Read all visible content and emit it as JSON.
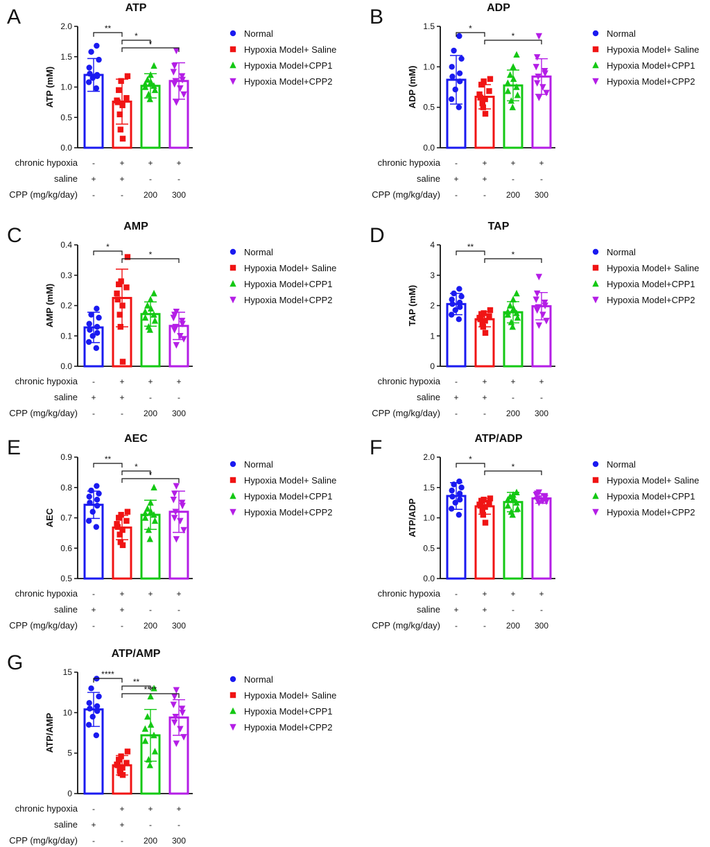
{
  "design": {
    "group_colors": [
      "#1a1af0",
      "#f01414",
      "#14c814",
      "#b41ee6"
    ],
    "group_markers": [
      "circle",
      "square",
      "triangle-up",
      "triangle-down"
    ]
  },
  "legend": [
    "Normal",
    "Hypoxia Model+ Saline",
    "Hypoxia Model+CPP1",
    "Hypoxia Model+CPP2"
  ],
  "conditions": {
    "labels": [
      "chronic hypoxia",
      "saline",
      "CPP (mg/kg/day)"
    ],
    "values": [
      [
        "-",
        "+",
        "+",
        "+"
      ],
      [
        "+",
        "+",
        "-",
        "-"
      ],
      [
        "-",
        "-",
        "200",
        "300"
      ]
    ]
  },
  "chart_data": [
    {
      "panel": "A",
      "type": "bar",
      "title": "ATP",
      "ylabel": "ATP (mM)",
      "ylim": [
        0,
        2.0
      ],
      "yticks": [
        "0.0",
        "0.5",
        "1.0",
        "1.5",
        "2.0"
      ],
      "categories": [
        "Normal",
        "Hypoxia Model+ Saline",
        "Hypoxia Model+CPP1",
        "Hypoxia Model+CPP2"
      ],
      "means": [
        1.2,
        0.76,
        1.02,
        1.1
      ],
      "sd": [
        0.27,
        0.37,
        0.2,
        0.3
      ],
      "points": [
        [
          0.98,
          1.08,
          1.15,
          1.18,
          1.22,
          1.2,
          1.32,
          1.45,
          1.58,
          1.68
        ],
        [
          0.15,
          0.3,
          0.55,
          0.7,
          0.75,
          0.78,
          0.82,
          0.95,
          1.1,
          1.18
        ],
        [
          0.8,
          0.88,
          0.95,
          1.0,
          1.02,
          1.05,
          1.08,
          1.12,
          1.2,
          1.35
        ],
        [
          0.75,
          0.88,
          0.98,
          1.05,
          1.1,
          1.12,
          1.18,
          1.25,
          1.35,
          1.6
        ]
      ],
      "comparisons": [
        {
          "from": 0,
          "to": 1,
          "level": 0,
          "label": "**"
        },
        {
          "from": 1,
          "to": 2,
          "level": 1,
          "label": "*"
        },
        {
          "from": 1,
          "to": 3,
          "level": 2,
          "label": "*"
        }
      ]
    },
    {
      "panel": "B",
      "type": "bar",
      "title": "ADP",
      "ylabel": "ADP (mM)",
      "ylim": [
        0,
        1.5
      ],
      "yticks": [
        "0.0",
        "0.5",
        "1.0",
        "1.5"
      ],
      "categories": [
        "Normal",
        "Hypoxia Model+ Saline",
        "Hypoxia Model+CPP1",
        "Hypoxia Model+CPP2"
      ],
      "means": [
        0.84,
        0.63,
        0.77,
        0.88
      ],
      "sd": [
        0.3,
        0.15,
        0.19,
        0.22
      ],
      "points": [
        [
          0.5,
          0.6,
          0.72,
          0.82,
          0.88,
          0.92,
          1.0,
          1.1,
          1.2,
          1.38
        ],
        [
          0.42,
          0.5,
          0.55,
          0.6,
          0.62,
          0.66,
          0.7,
          0.78,
          0.82,
          0.85
        ],
        [
          0.5,
          0.58,
          0.65,
          0.7,
          0.75,
          0.8,
          0.85,
          0.9,
          1.0,
          1.15
        ],
        [
          0.62,
          0.68,
          0.75,
          0.8,
          0.88,
          0.92,
          0.95,
          1.0,
          1.12,
          1.38
        ]
      ],
      "comparisons": [
        {
          "from": 0,
          "to": 1,
          "level": 0,
          "label": "*"
        },
        {
          "from": 1,
          "to": 3,
          "level": 1,
          "label": "*"
        }
      ]
    },
    {
      "panel": "C",
      "type": "bar",
      "title": "AMP",
      "ylabel": "AMP (mM)",
      "ylim": [
        0,
        0.4
      ],
      "yticks": [
        "0.0",
        "0.1",
        "0.2",
        "0.3",
        "0.4"
      ],
      "categories": [
        "Normal",
        "Hypoxia Model+ Saline",
        "Hypoxia Model+CPP1",
        "Hypoxia Model+CPP2"
      ],
      "means": [
        0.128,
        0.225,
        0.172,
        0.133
      ],
      "sd": [
        0.05,
        0.095,
        0.04,
        0.045
      ],
      "points": [
        [
          0.06,
          0.08,
          0.1,
          0.11,
          0.12,
          0.13,
          0.14,
          0.16,
          0.17,
          0.19
        ],
        [
          0.015,
          0.13,
          0.17,
          0.2,
          0.22,
          0.24,
          0.26,
          0.27,
          0.28,
          0.36
        ],
        [
          0.12,
          0.13,
          0.15,
          0.16,
          0.17,
          0.18,
          0.19,
          0.2,
          0.22,
          0.24
        ],
        [
          0.07,
          0.09,
          0.1,
          0.12,
          0.13,
          0.14,
          0.15,
          0.16,
          0.17,
          0.18
        ]
      ],
      "comparisons": [
        {
          "from": 0,
          "to": 1,
          "level": 0,
          "label": "*"
        },
        {
          "from": 1,
          "to": 3,
          "level": 1,
          "label": "*"
        }
      ]
    },
    {
      "panel": "D",
      "type": "bar",
      "title": "TAP",
      "ylabel": "TAP (mM)",
      "ylim": [
        0,
        4
      ],
      "yticks": [
        "0",
        "1",
        "2",
        "3",
        "4"
      ],
      "categories": [
        "Normal",
        "Hypoxia Model+ Saline",
        "Hypoxia Model+CPP1",
        "Hypoxia Model+CPP2"
      ],
      "means": [
        2.05,
        1.55,
        1.78,
        1.98
      ],
      "sd": [
        0.35,
        0.25,
        0.35,
        0.45
      ],
      "points": [
        [
          1.55,
          1.7,
          1.85,
          1.95,
          2.05,
          2.1,
          2.2,
          2.3,
          2.4,
          2.55
        ],
        [
          1.1,
          1.3,
          1.4,
          1.5,
          1.55,
          1.6,
          1.65,
          1.7,
          1.75,
          1.85
        ],
        [
          1.3,
          1.45,
          1.6,
          1.7,
          1.75,
          1.8,
          1.9,
          2.0,
          2.2,
          2.4
        ],
        [
          1.35,
          1.5,
          1.7,
          1.85,
          1.95,
          2.0,
          2.1,
          2.2,
          2.4,
          2.95
        ]
      ],
      "comparisons": [
        {
          "from": 0,
          "to": 1,
          "level": 0,
          "label": "**"
        },
        {
          "from": 1,
          "to": 3,
          "level": 1,
          "label": "*"
        }
      ]
    },
    {
      "panel": "E",
      "type": "bar",
      "title": "AEC",
      "ylabel": "AEC",
      "ylim": [
        0.5,
        0.9
      ],
      "yticks": [
        "0.5",
        "0.6",
        "0.7",
        "0.8",
        "0.9"
      ],
      "categories": [
        "Normal",
        "Hypoxia Model+ Saline",
        "Hypoxia Model+CPP1",
        "Hypoxia Model+CPP2"
      ],
      "means": [
        0.743,
        0.668,
        0.71,
        0.72
      ],
      "sd": [
        0.045,
        0.04,
        0.048,
        0.068
      ],
      "points": [
        [
          0.67,
          0.69,
          0.72,
          0.74,
          0.75,
          0.76,
          0.77,
          0.78,
          0.79,
          0.805
        ],
        [
          0.61,
          0.62,
          0.645,
          0.66,
          0.67,
          0.68,
          0.69,
          0.7,
          0.71,
          0.72
        ],
        [
          0.63,
          0.66,
          0.69,
          0.7,
          0.71,
          0.715,
          0.72,
          0.73,
          0.75,
          0.8
        ],
        [
          0.63,
          0.66,
          0.69,
          0.7,
          0.72,
          0.74,
          0.75,
          0.76,
          0.78,
          0.805
        ]
      ],
      "comparisons": [
        {
          "from": 0,
          "to": 1,
          "level": 0,
          "label": "**"
        },
        {
          "from": 1,
          "to": 2,
          "level": 1,
          "label": "*"
        },
        {
          "from": 1,
          "to": 3,
          "level": 2,
          "label": "*"
        }
      ]
    },
    {
      "panel": "F",
      "type": "bar",
      "title": "ATP/ADP",
      "ylabel": "ATP/ADP",
      "ylim": [
        0,
        2.0
      ],
      "yticks": [
        "0.0",
        "0.5",
        "1.0",
        "1.5",
        "2.0"
      ],
      "categories": [
        "Normal",
        "Hypoxia Model+ Saline",
        "Hypoxia Model+CPP1",
        "Hypoxia Model+CPP2"
      ],
      "means": [
        1.36,
        1.19,
        1.26,
        1.32
      ],
      "sd": [
        0.22,
        0.13,
        0.16,
        0.08
      ],
      "points": [
        [
          1.05,
          1.15,
          1.25,
          1.3,
          1.35,
          1.4,
          1.45,
          1.5,
          1.55,
          1.6
        ],
        [
          0.92,
          1.05,
          1.12,
          1.18,
          1.2,
          1.22,
          1.25,
          1.28,
          1.3,
          1.32
        ],
        [
          1.05,
          1.1,
          1.15,
          1.2,
          1.25,
          1.3,
          1.32,
          1.35,
          1.38,
          1.42
        ],
        [
          1.25,
          1.27,
          1.28,
          1.3,
          1.32,
          1.33,
          1.35,
          1.38,
          1.4,
          1.42
        ]
      ],
      "comparisons": [
        {
          "from": 0,
          "to": 1,
          "level": 0,
          "label": "*"
        },
        {
          "from": 1,
          "to": 3,
          "level": 1,
          "label": "*"
        }
      ]
    },
    {
      "panel": "G",
      "type": "bar",
      "title": "ATP/AMP",
      "ylabel": "ATP/AMP",
      "ylim": [
        0,
        15
      ],
      "yticks": [
        "0",
        "5",
        "10",
        "15"
      ],
      "categories": [
        "Normal",
        "Hypoxia Model+ Saline",
        "Hypoxia Model+CPP1",
        "Hypoxia Model+CPP2"
      ],
      "means": [
        10.4,
        3.5,
        7.2,
        9.4
      ],
      "sd": [
        2.1,
        1.2,
        3.2,
        2.2
      ],
      "points": [
        [
          7.2,
          8.5,
          9.5,
          10.2,
          10.5,
          10.8,
          11.2,
          12.0,
          13.0,
          14.2
        ],
        [
          2.3,
          2.5,
          2.8,
          3.2,
          3.5,
          3.6,
          3.8,
          4.2,
          4.6,
          5.2
        ],
        [
          3.5,
          4.2,
          5.2,
          6.5,
          7.2,
          8.0,
          8.5,
          9.5,
          12.0,
          13.0
        ],
        [
          6.2,
          7.0,
          8.0,
          8.8,
          9.5,
          10.0,
          10.5,
          11.0,
          12.0,
          12.8
        ]
      ],
      "comparisons": [
        {
          "from": 0,
          "to": 1,
          "level": 0,
          "label": "****"
        },
        {
          "from": 1,
          "to": 2,
          "level": 1,
          "label": "**"
        },
        {
          "from": 1,
          "to": 3,
          "level": 2,
          "label": "****"
        }
      ]
    }
  ]
}
